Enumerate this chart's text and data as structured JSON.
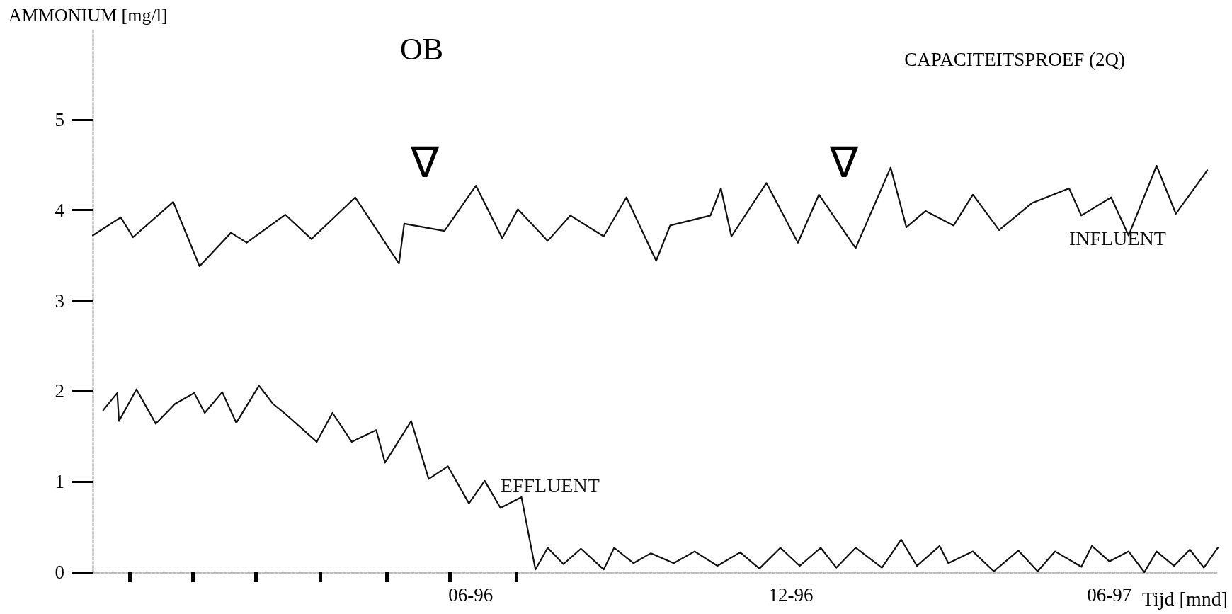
{
  "chart_data": {
    "type": "line",
    "title": "OB",
    "ylabel": "AMMONIUM [mg/l]",
    "xlabel": "Tijd [mnd]",
    "annotations": [
      "CAPACITEITSPROEF (2Q)",
      "∇",
      "∇"
    ],
    "xlim": [
      "1995-10-29",
      "1997-08-02"
    ],
    "ylim": [
      0,
      6
    ],
    "yticks": [
      0,
      1,
      2,
      3,
      4,
      5
    ],
    "xticks": [
      {
        "value": "1995-11-19",
        "label": null
      },
      {
        "value": "1995-12-25",
        "label": null
      },
      {
        "value": "1996-01-30",
        "label": null
      },
      {
        "value": "1996-03-07",
        "label": null
      },
      {
        "value": "1996-04-14",
        "label": null
      },
      {
        "value": "1996-05-20",
        "label": null
      },
      {
        "value": "1996-06-27",
        "label": null
      },
      {
        "value": "1996-06-01",
        "label": "06-96"
      },
      {
        "value": "1996-12-01",
        "label": "12-96"
      },
      {
        "value": "1997-06-01",
        "label": "06-97"
      }
    ],
    "grid": false,
    "legend": false,
    "marker": "none",
    "line_style": "solid",
    "series": [
      {
        "name": "INFLUENT",
        "color": "#111111",
        "x": [
          "1995-10-29",
          "1995-11-14",
          "1995-11-21",
          "1995-12-14",
          "1995-12-29",
          "1996-01-16",
          "1996-01-25",
          "1996-02-16",
          "1996-03-02",
          "1996-03-27",
          "1996-04-21",
          "1996-04-24",
          "1996-05-17",
          "1996-06-04",
          "1996-06-19",
          "1996-06-28",
          "1996-07-15",
          "1996-07-28",
          "1996-08-16",
          "1996-08-29",
          "1996-09-15",
          "1996-09-23",
          "1996-10-16",
          "1996-10-22",
          "1996-10-28",
          "1996-11-17",
          "1996-12-05",
          "1996-12-17",
          "1997-01-07",
          "1997-01-27",
          "1997-02-05",
          "1997-02-16",
          "1997-03-04",
          "1997-03-15",
          "1997-03-30",
          "1997-04-18",
          "1997-05-09",
          "1997-05-16",
          "1997-06-02",
          "1997-06-12",
          "1997-06-28",
          "1997-07-09",
          "1997-07-27"
        ],
        "values": [
          3.72,
          3.92,
          3.7,
          4.09,
          3.38,
          3.75,
          3.64,
          3.95,
          3.68,
          4.14,
          3.41,
          3.85,
          3.77,
          4.27,
          3.69,
          4.01,
          3.66,
          3.94,
          3.71,
          4.14,
          3.44,
          3.83,
          3.94,
          4.24,
          3.71,
          4.3,
          3.64,
          4.17,
          3.58,
          4.47,
          3.81,
          3.99,
          3.83,
          4.17,
          3.78,
          4.08,
          4.24,
          3.94,
          4.14,
          3.72,
          4.49,
          3.96,
          4.44
        ]
      },
      {
        "name": "EFFLUENT",
        "color": "#111111",
        "x": [
          "1995-11-04",
          "1995-11-12",
          "1995-11-13",
          "1995-11-23",
          "1995-12-04",
          "1995-12-15",
          "1995-12-26",
          "1996-01-01",
          "1996-01-11",
          "1996-01-19",
          "1996-02-01",
          "1996-02-09",
          "1996-02-16",
          "1996-03-05",
          "1996-03-14",
          "1996-03-25",
          "1996-04-08",
          "1996-04-13",
          "1996-04-28",
          "1996-05-08",
          "1996-05-19",
          "1996-05-31",
          "1996-06-09",
          "1996-06-18",
          "1996-06-30",
          "1996-07-08",
          "1996-07-15",
          "1996-07-24",
          "1996-08-03",
          "1996-08-16",
          "1996-08-22",
          "1996-09-02",
          "1996-09-12",
          "1996-09-25",
          "1996-10-07",
          "1996-10-20",
          "1996-11-02",
          "1996-11-13",
          "1996-11-25",
          "1996-12-06",
          "1996-12-18",
          "1996-12-27",
          "1997-01-07",
          "1997-01-22",
          "1997-02-02",
          "1997-02-11",
          "1997-02-24",
          "1997-03-01",
          "1997-03-15",
          "1997-03-27",
          "1997-04-10",
          "1997-04-21",
          "1997-05-01",
          "1997-05-16",
          "1997-05-22",
          "1997-06-01",
          "1997-06-12",
          "1997-06-21",
          "1997-06-28",
          "1997-07-08",
          "1997-07-17",
          "1997-07-25",
          "1997-08-02"
        ],
        "values": [
          1.79,
          1.98,
          1.67,
          2.02,
          1.64,
          1.86,
          1.98,
          1.76,
          1.99,
          1.65,
          2.06,
          1.86,
          1.75,
          1.44,
          1.76,
          1.44,
          1.57,
          1.21,
          1.67,
          1.03,
          1.17,
          0.76,
          1.01,
          0.71,
          0.83,
          0.03,
          0.27,
          0.09,
          0.26,
          0.03,
          0.27,
          0.1,
          0.21,
          0.1,
          0.23,
          0.07,
          0.22,
          0.04,
          0.27,
          0.07,
          0.27,
          0.05,
          0.27,
          0.05,
          0.36,
          0.07,
          0.29,
          0.1,
          0.23,
          0.01,
          0.24,
          0.01,
          0.23,
          0.06,
          0.29,
          0.12,
          0.23,
          0,
          0.23,
          0.07,
          0.25,
          0.05,
          0.27
        ]
      }
    ]
  }
}
